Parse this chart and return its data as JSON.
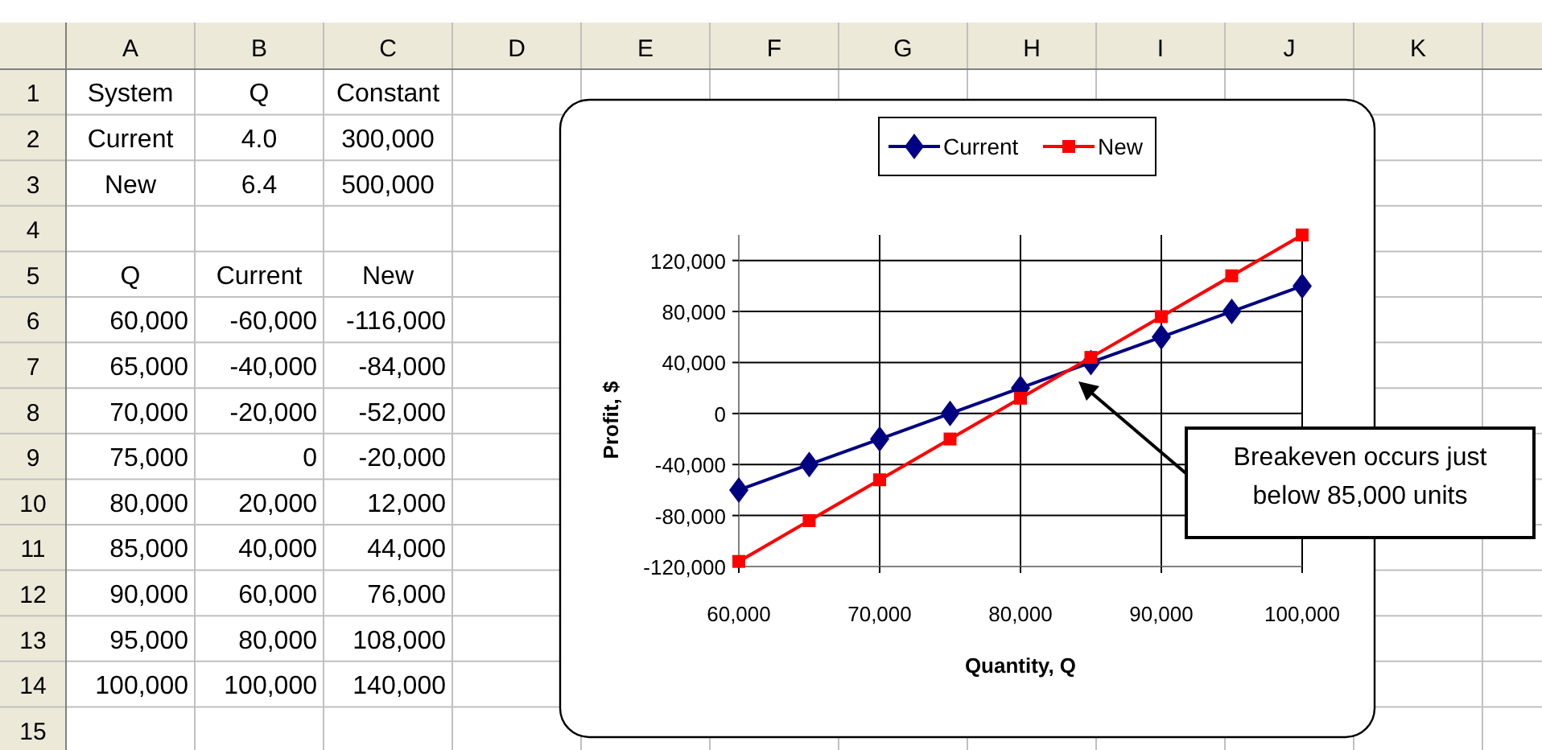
{
  "chart_data": [
    {
      "type": "heatmap",
      "categories": [
        "A",
        "B",
        "C",
        "D",
        "E",
        "F",
        "G",
        "H",
        "I",
        "J",
        "K"
      ],
      "y_categories": [
        "1",
        "2",
        "3",
        "4",
        "5",
        "6",
        "7",
        "8",
        "9",
        "10",
        "11",
        "12",
        "13",
        "14",
        "15"
      ],
      "cells": [
        [
          null,
          null,
          null,
          null,
          null,
          null,
          null,
          null,
          null,
          null,
          null
        ],
        [
          null,
          null,
          null,
          null,
          null,
          null,
          null,
          null,
          null,
          null,
          null
        ],
        [
          null,
          null,
          null,
          null,
          null,
          null,
          null,
          null,
          null,
          null,
          null
        ],
        [
          null,
          null,
          null,
          null,
          null,
          null,
          null,
          null,
          null,
          null,
          null
        ],
        [
          null,
          null,
          null,
          null,
          null,
          null,
          null,
          null,
          null,
          null,
          null
        ],
        [
          null,
          null,
          null,
          null,
          null,
          null,
          null,
          null,
          null,
          null,
          null
        ],
        [
          null,
          null,
          null,
          null,
          null,
          null,
          null,
          null,
          null,
          null,
          null
        ],
        [
          null,
          null,
          null,
          null,
          null,
          null,
          null,
          null,
          null,
          null,
          null
        ],
        [
          null,
          null,
          null,
          null,
          null,
          null,
          null,
          null,
          null,
          null,
          null
        ],
        [
          null,
          null,
          null,
          null,
          null,
          null,
          null,
          null,
          null,
          null,
          null
        ],
        [
          null,
          null,
          null,
          null,
          null,
          null,
          null,
          null,
          null,
          null,
          null
        ],
        [
          null,
          null,
          null,
          null,
          null,
          null,
          null,
          null,
          null,
          null,
          null
        ],
        [
          null,
          null,
          null,
          null,
          null,
          null,
          null,
          null,
          null,
          null,
          null
        ],
        [
          null,
          null,
          null,
          null,
          null,
          null,
          null,
          null,
          null,
          null,
          null
        ],
        [
          null,
          null,
          null,
          null,
          null,
          null,
          null,
          null,
          null,
          null,
          null
        ]
      ],
      "cell_labels": [
        [
          "System",
          "Q",
          "Constant",
          null,
          null,
          null,
          null,
          null,
          null,
          null,
          null
        ],
        [
          "Current",
          "4.0",
          "300,000",
          null,
          null,
          null,
          null,
          null,
          null,
          null,
          null
        ],
        [
          "New",
          "6.4",
          "500,000",
          null,
          null,
          null,
          null,
          null,
          null,
          null,
          null
        ],
        [
          null,
          null,
          null,
          null,
          null,
          null,
          null,
          null,
          null,
          null,
          null
        ],
        [
          "Q",
          "Current",
          "New",
          null,
          null,
          null,
          null,
          null,
          null,
          null,
          null
        ],
        [
          "60,000",
          "-60,000",
          "-116,000",
          null,
          null,
          null,
          null,
          null,
          null,
          null,
          null
        ],
        [
          "65,000",
          "-40,000",
          "-84,000",
          null,
          null,
          null,
          null,
          null,
          null,
          null,
          null
        ],
        [
          "70,000",
          "-20,000",
          "-52,000",
          null,
          null,
          null,
          null,
          null,
          null,
          null,
          null
        ],
        [
          "75,000",
          "0",
          "-20,000",
          null,
          null,
          null,
          null,
          null,
          null,
          null,
          null
        ],
        [
          "80,000",
          "20,000",
          "12,000",
          null,
          null,
          null,
          null,
          null,
          null,
          null,
          null
        ],
        [
          "85,000",
          "40,000",
          "44,000",
          null,
          null,
          null,
          null,
          null,
          null,
          null,
          null
        ],
        [
          "90,000",
          "60,000",
          "76,000",
          null,
          null,
          null,
          null,
          null,
          null,
          null,
          null
        ],
        [
          "95,000",
          "80,000",
          "108,000",
          null,
          null,
          null,
          null,
          null,
          null,
          null,
          null
        ],
        [
          "100,000",
          "100,000",
          "140,000",
          null,
          null,
          null,
          null,
          null,
          null,
          null,
          null
        ],
        [
          null,
          null,
          null,
          null,
          null,
          null,
          null,
          null,
          null,
          null,
          null
        ]
      ]
    },
    {
      "type": "line",
      "xlabel": "Quantity, Q",
      "ylabel": "Profit, $",
      "x": [
        60000,
        65000,
        70000,
        75000,
        80000,
        85000,
        90000,
        95000,
        100000
      ],
      "series": [
        {
          "name": "Current",
          "color": "#000080",
          "marker": "diamond",
          "values": [
            -60000,
            -40000,
            -20000,
            0,
            20000,
            40000,
            60000,
            80000,
            100000
          ]
        },
        {
          "name": "New",
          "color": "#ff0000",
          "marker": "square",
          "values": [
            -116000,
            -84000,
            -52000,
            -20000,
            12000,
            44000,
            76000,
            108000,
            140000
          ]
        }
      ],
      "xlim": [
        60000,
        100000
      ],
      "xticks": [
        {
          "value": 60000,
          "label": "60,000"
        },
        {
          "value": 70000,
          "label": "70,000"
        },
        {
          "value": 80000,
          "label": "80,000"
        },
        {
          "value": 90000,
          "label": "90,000"
        },
        {
          "value": 100000,
          "label": "100,000"
        }
      ],
      "ylim": [
        -120000,
        140000
      ],
      "yticks": [
        {
          "value": -120000,
          "label": "-120,000"
        },
        {
          "value": -80000,
          "label": "-80,000"
        },
        {
          "value": -40000,
          "label": "-40,000"
        },
        0,
        {
          "value": 40000,
          "label": "40,000"
        },
        {
          "value": 80000,
          "label": "80,000"
        },
        {
          "value": 120000,
          "label": "120,000"
        }
      ],
      "grid": true,
      "legend": "top",
      "line_style": "solid",
      "annotations": [
        "Breakeven occurs just below 85,000 units"
      ]
    }
  ]
}
